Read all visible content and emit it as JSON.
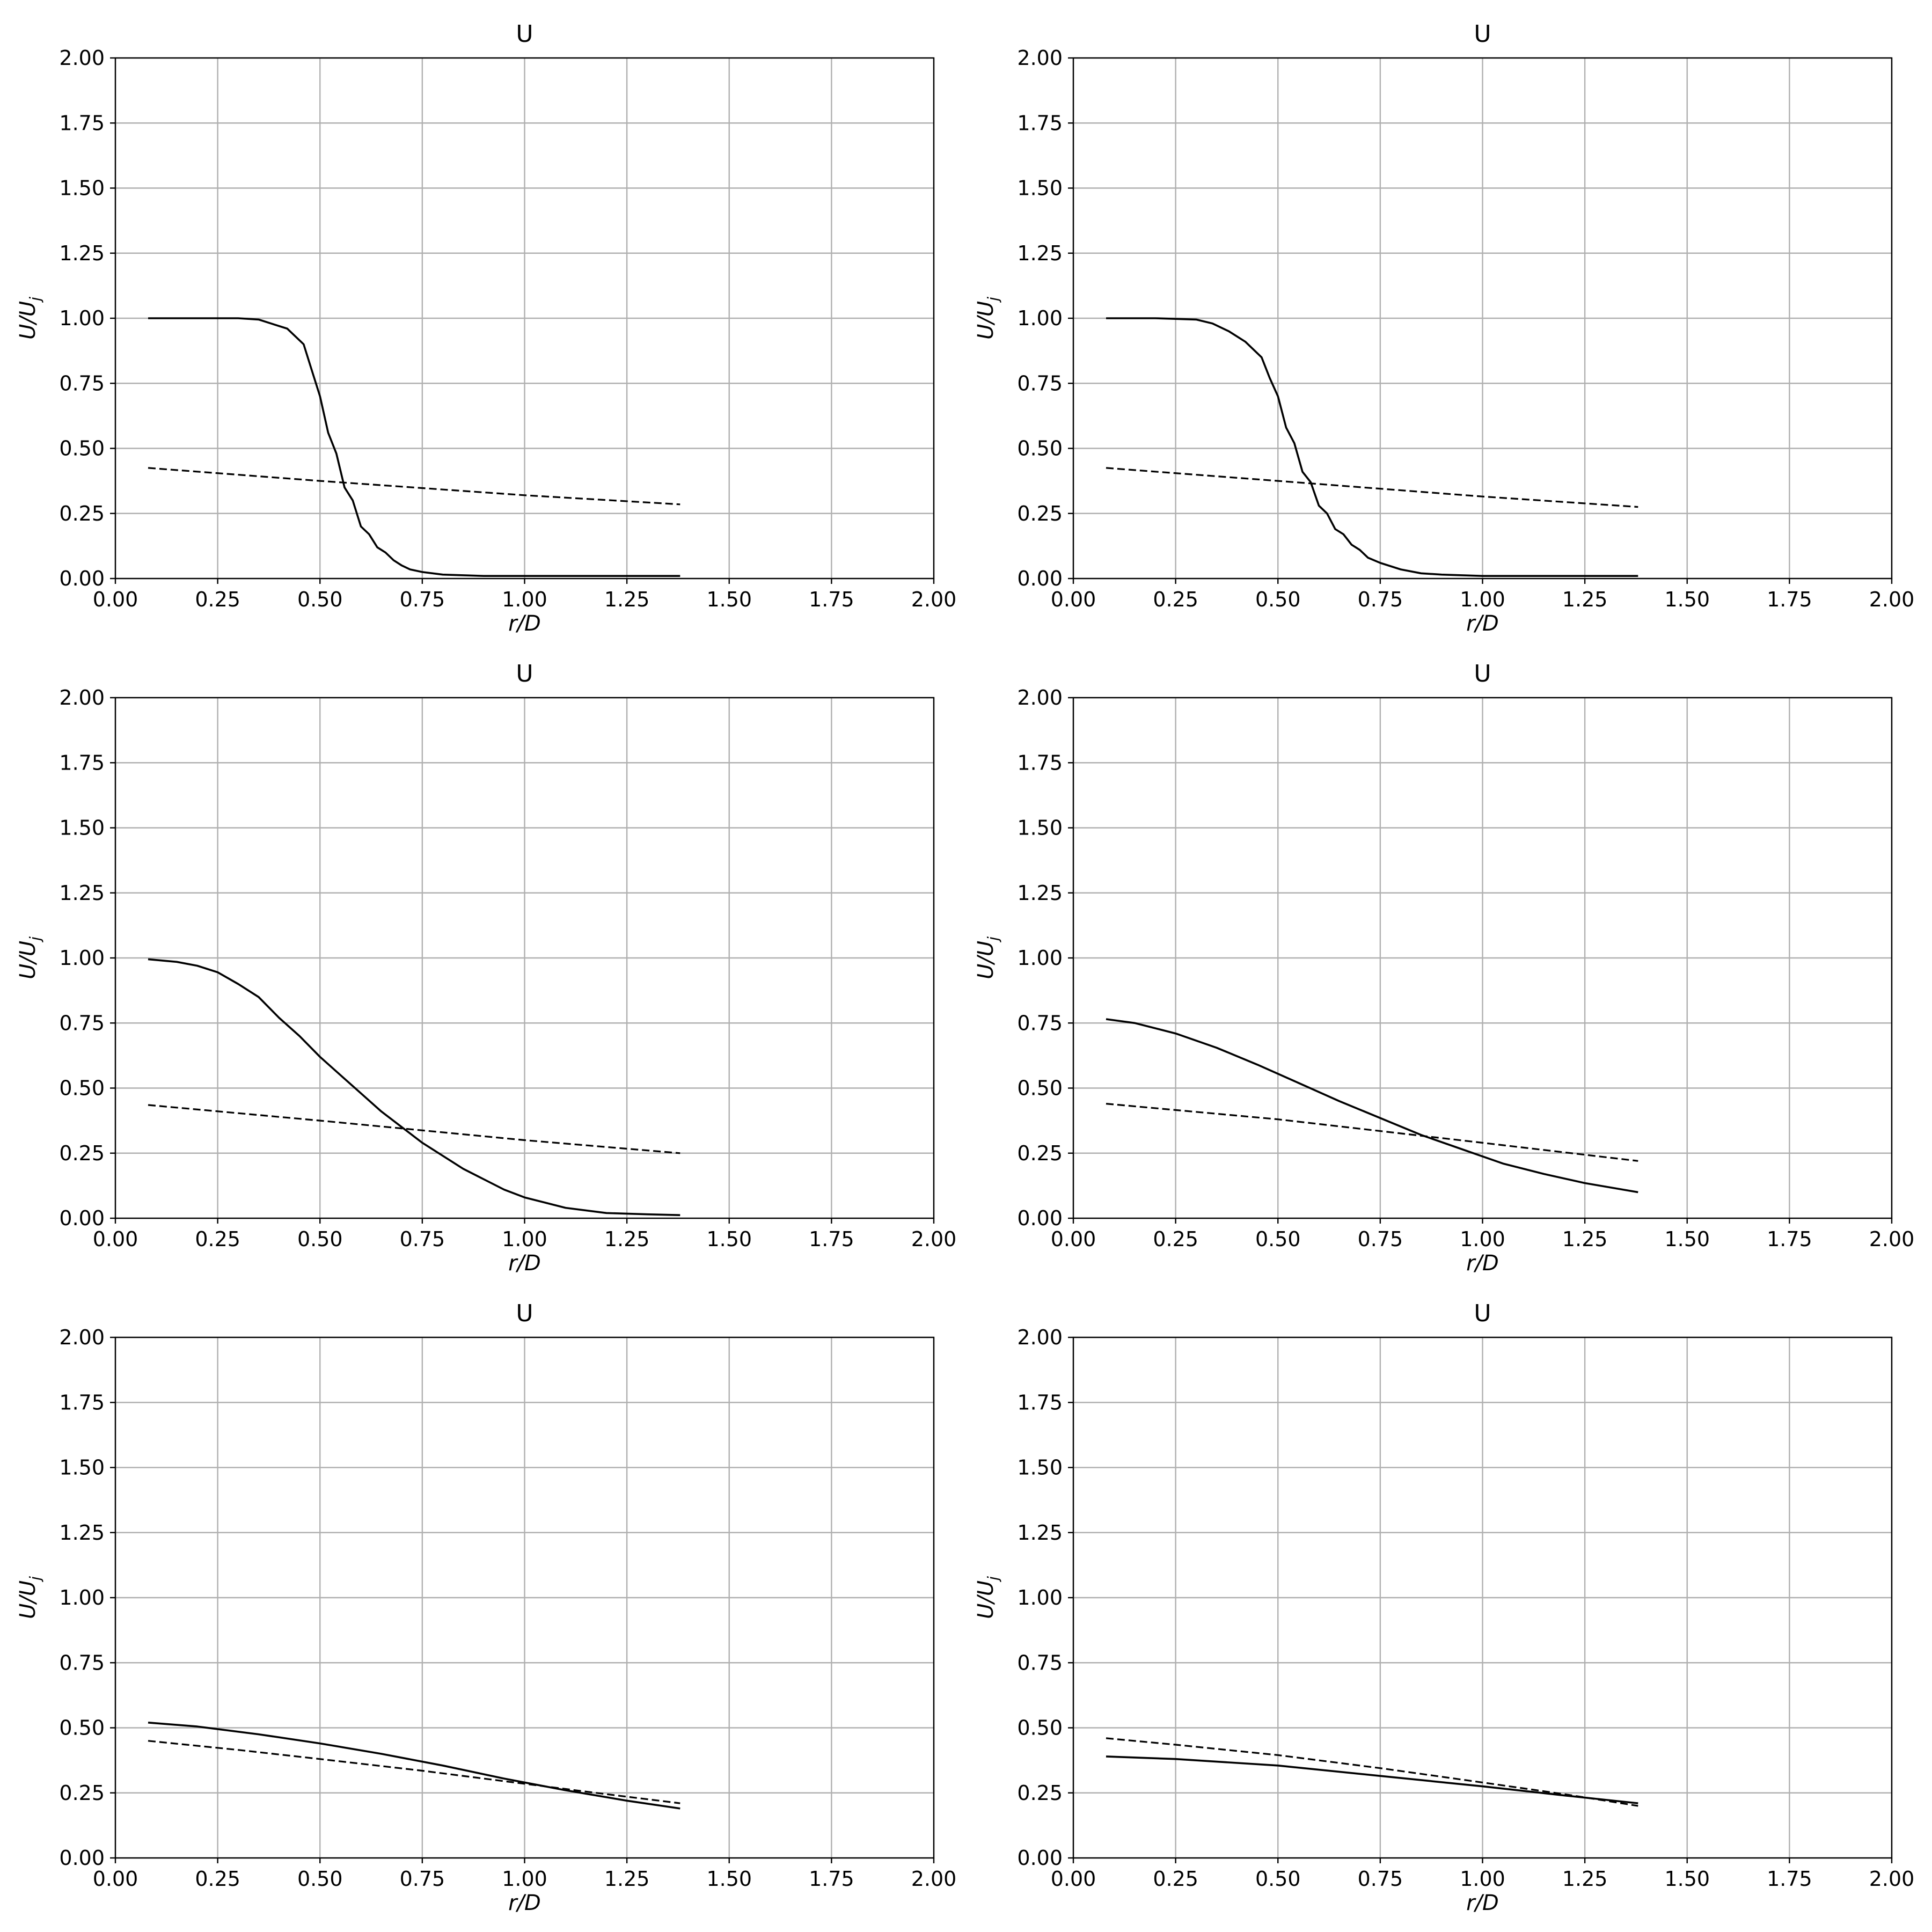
{
  "chart_data": [
    {
      "type": "line",
      "title": "U",
      "xlabel": "r/D",
      "ylabel": "U/U_j",
      "xlim": [
        0,
        2
      ],
      "ylim": [
        0,
        2
      ],
      "xticks": [
        "0.00",
        "0.25",
        "0.50",
        "0.75",
        "1.00",
        "1.25",
        "1.50",
        "1.75",
        "2.00"
      ],
      "yticks": [
        "0.00",
        "0.25",
        "0.50",
        "0.75",
        "1.00",
        "1.25",
        "1.50",
        "1.75",
        "2.00"
      ],
      "grid": true,
      "series": [
        {
          "style": "solid",
          "points": [
            [
              0.08,
              1.0
            ],
            [
              0.2,
              1.0
            ],
            [
              0.3,
              1.0
            ],
            [
              0.35,
              0.995
            ],
            [
              0.38,
              0.98
            ],
            [
              0.42,
              0.96
            ],
            [
              0.46,
              0.9
            ],
            [
              0.48,
              0.8
            ],
            [
              0.5,
              0.7
            ],
            [
              0.52,
              0.56
            ],
            [
              0.54,
              0.48
            ],
            [
              0.56,
              0.35
            ],
            [
              0.58,
              0.3
            ],
            [
              0.6,
              0.2
            ],
            [
              0.62,
              0.17
            ],
            [
              0.64,
              0.12
            ],
            [
              0.66,
              0.1
            ],
            [
              0.68,
              0.07
            ],
            [
              0.7,
              0.05
            ],
            [
              0.72,
              0.035
            ],
            [
              0.75,
              0.025
            ],
            [
              0.8,
              0.015
            ],
            [
              0.9,
              0.01
            ],
            [
              1.0,
              0.01
            ],
            [
              1.2,
              0.01
            ],
            [
              1.38,
              0.01
            ]
          ]
        },
        {
          "style": "dashed",
          "points": [
            [
              0.08,
              0.425
            ],
            [
              0.5,
              0.375
            ],
            [
              1.0,
              0.32
            ],
            [
              1.38,
              0.285
            ]
          ]
        }
      ]
    },
    {
      "type": "line",
      "title": "U",
      "xlabel": "r/D",
      "ylabel": "U/U_j",
      "xlim": [
        0,
        2
      ],
      "ylim": [
        0,
        2
      ],
      "xticks": [
        "0.00",
        "0.25",
        "0.50",
        "0.75",
        "1.00",
        "1.25",
        "1.50",
        "1.75",
        "2.00"
      ],
      "yticks": [
        "0.00",
        "0.25",
        "0.50",
        "0.75",
        "1.00",
        "1.25",
        "1.50",
        "1.75",
        "2.00"
      ],
      "grid": true,
      "series": [
        {
          "style": "solid",
          "points": [
            [
              0.08,
              1.0
            ],
            [
              0.2,
              1.0
            ],
            [
              0.3,
              0.995
            ],
            [
              0.34,
              0.98
            ],
            [
              0.38,
              0.95
            ],
            [
              0.42,
              0.91
            ],
            [
              0.46,
              0.85
            ],
            [
              0.48,
              0.77
            ],
            [
              0.5,
              0.7
            ],
            [
              0.52,
              0.58
            ],
            [
              0.54,
              0.52
            ],
            [
              0.56,
              0.41
            ],
            [
              0.58,
              0.37
            ],
            [
              0.6,
              0.28
            ],
            [
              0.62,
              0.25
            ],
            [
              0.64,
              0.19
            ],
            [
              0.66,
              0.17
            ],
            [
              0.68,
              0.13
            ],
            [
              0.7,
              0.11
            ],
            [
              0.72,
              0.08
            ],
            [
              0.75,
              0.06
            ],
            [
              0.8,
              0.035
            ],
            [
              0.85,
              0.02
            ],
            [
              0.9,
              0.015
            ],
            [
              1.0,
              0.01
            ],
            [
              1.2,
              0.01
            ],
            [
              1.38,
              0.01
            ]
          ]
        },
        {
          "style": "dashed",
          "points": [
            [
              0.08,
              0.425
            ],
            [
              0.5,
              0.375
            ],
            [
              1.0,
              0.315
            ],
            [
              1.38,
              0.275
            ]
          ]
        }
      ]
    },
    {
      "type": "line",
      "title": "U",
      "xlabel": "r/D",
      "ylabel": "U/U_j",
      "xlim": [
        0,
        2
      ],
      "ylim": [
        0,
        2
      ],
      "xticks": [
        "0.00",
        "0.25",
        "0.50",
        "0.75",
        "1.00",
        "1.25",
        "1.50",
        "1.75",
        "2.00"
      ],
      "yticks": [
        "0.00",
        "0.25",
        "0.50",
        "0.75",
        "1.00",
        "1.25",
        "1.50",
        "1.75",
        "2.00"
      ],
      "grid": true,
      "series": [
        {
          "style": "solid",
          "points": [
            [
              0.08,
              0.995
            ],
            [
              0.15,
              0.985
            ],
            [
              0.2,
              0.97
            ],
            [
              0.25,
              0.945
            ],
            [
              0.3,
              0.9
            ],
            [
              0.35,
              0.85
            ],
            [
              0.4,
              0.77
            ],
            [
              0.45,
              0.7
            ],
            [
              0.5,
              0.62
            ],
            [
              0.55,
              0.55
            ],
            [
              0.6,
              0.48
            ],
            [
              0.65,
              0.41
            ],
            [
              0.7,
              0.35
            ],
            [
              0.75,
              0.29
            ],
            [
              0.8,
              0.24
            ],
            [
              0.85,
              0.19
            ],
            [
              0.9,
              0.15
            ],
            [
              0.95,
              0.11
            ],
            [
              1.0,
              0.08
            ],
            [
              1.05,
              0.06
            ],
            [
              1.1,
              0.04
            ],
            [
              1.2,
              0.02
            ],
            [
              1.3,
              0.015
            ],
            [
              1.38,
              0.012
            ]
          ]
        },
        {
          "style": "dashed",
          "points": [
            [
              0.08,
              0.435
            ],
            [
              0.5,
              0.375
            ],
            [
              1.0,
              0.3
            ],
            [
              1.38,
              0.25
            ]
          ]
        }
      ]
    },
    {
      "type": "line",
      "title": "U",
      "xlabel": "r/D",
      "ylabel": "U/U_j",
      "xlim": [
        0,
        2
      ],
      "ylim": [
        0,
        2
      ],
      "xticks": [
        "0.00",
        "0.25",
        "0.50",
        "0.75",
        "1.00",
        "1.25",
        "1.50",
        "1.75",
        "2.00"
      ],
      "yticks": [
        "0.00",
        "0.25",
        "0.50",
        "0.75",
        "1.00",
        "1.25",
        "1.50",
        "1.75",
        "2.00"
      ],
      "grid": true,
      "series": [
        {
          "style": "solid",
          "points": [
            [
              0.08,
              0.765
            ],
            [
              0.15,
              0.75
            ],
            [
              0.25,
              0.71
            ],
            [
              0.35,
              0.655
            ],
            [
              0.45,
              0.59
            ],
            [
              0.55,
              0.52
            ],
            [
              0.65,
              0.45
            ],
            [
              0.75,
              0.385
            ],
            [
              0.85,
              0.32
            ],
            [
              0.95,
              0.265
            ],
            [
              1.05,
              0.21
            ],
            [
              1.15,
              0.17
            ],
            [
              1.25,
              0.135
            ],
            [
              1.38,
              0.1
            ]
          ]
        },
        {
          "style": "dashed",
          "points": [
            [
              0.08,
              0.44
            ],
            [
              0.5,
              0.38
            ],
            [
              1.0,
              0.29
            ],
            [
              1.38,
              0.22
            ]
          ]
        }
      ]
    },
    {
      "type": "line",
      "title": "U",
      "xlabel": "r/D",
      "ylabel": "U/U_j",
      "xlim": [
        0,
        2
      ],
      "ylim": [
        0,
        2
      ],
      "xticks": [
        "0.00",
        "0.25",
        "0.50",
        "0.75",
        "1.00",
        "1.25",
        "1.50",
        "1.75",
        "2.00"
      ],
      "yticks": [
        "0.00",
        "0.25",
        "0.50",
        "0.75",
        "1.00",
        "1.25",
        "1.50",
        "1.75",
        "2.00"
      ],
      "grid": true,
      "series": [
        {
          "style": "solid",
          "points": [
            [
              0.08,
              0.52
            ],
            [
              0.2,
              0.505
            ],
            [
              0.35,
              0.475
            ],
            [
              0.5,
              0.44
            ],
            [
              0.65,
              0.4
            ],
            [
              0.8,
              0.355
            ],
            [
              0.95,
              0.305
            ],
            [
              1.1,
              0.26
            ],
            [
              1.25,
              0.22
            ],
            [
              1.38,
              0.19
            ]
          ]
        },
        {
          "style": "dashed",
          "points": [
            [
              0.08,
              0.45
            ],
            [
              0.3,
              0.415
            ],
            [
              0.5,
              0.38
            ],
            [
              0.75,
              0.335
            ],
            [
              1.0,
              0.285
            ],
            [
              1.2,
              0.245
            ],
            [
              1.38,
              0.21
            ]
          ]
        }
      ]
    },
    {
      "type": "line",
      "title": "U",
      "xlabel": "r/D",
      "ylabel": "U/U_j",
      "xlim": [
        0,
        2
      ],
      "ylim": [
        0,
        2
      ],
      "xticks": [
        "0.00",
        "0.25",
        "0.50",
        "0.75",
        "1.00",
        "1.25",
        "1.50",
        "1.75",
        "2.00"
      ],
      "yticks": [
        "0.00",
        "0.25",
        "0.50",
        "0.75",
        "1.00",
        "1.25",
        "1.50",
        "1.75",
        "2.00"
      ],
      "grid": true,
      "series": [
        {
          "style": "solid",
          "points": [
            [
              0.08,
              0.39
            ],
            [
              0.25,
              0.38
            ],
            [
              0.5,
              0.355
            ],
            [
              0.75,
              0.315
            ],
            [
              1.0,
              0.275
            ],
            [
              1.2,
              0.24
            ],
            [
              1.38,
              0.21
            ]
          ]
        },
        {
          "style": "dashed",
          "points": [
            [
              0.08,
              0.46
            ],
            [
              0.25,
              0.435
            ],
            [
              0.5,
              0.395
            ],
            [
              0.75,
              0.345
            ],
            [
              1.0,
              0.29
            ],
            [
              1.2,
              0.245
            ],
            [
              1.38,
              0.2
            ]
          ]
        }
      ]
    }
  ]
}
